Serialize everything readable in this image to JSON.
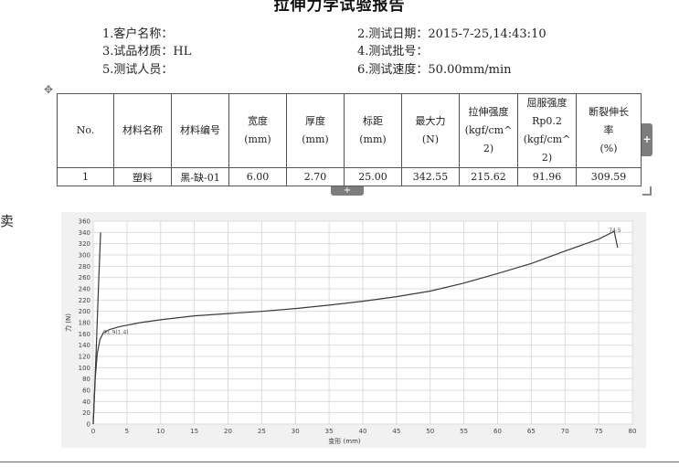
{
  "report": {
    "title": "拉伸力学试验报告"
  },
  "info": {
    "customer_label": "1.客户名称：",
    "customer_value": "",
    "material_label": "3.试品材质：",
    "material_value": "HL",
    "tester_label": "5.测试人员：",
    "tester_value": "",
    "date_label": "2.测试日期：",
    "date_value": "2015-7-25,14:43:10",
    "batch_label": "4.测试批号：",
    "batch_value": "",
    "speed_label": "6.测试速度：",
    "speed_value": "50.00mm/min"
  },
  "table": {
    "headers": [
      [
        "No."
      ],
      [
        "材料名称"
      ],
      [
        "材料编号"
      ],
      [
        "宽度",
        "(mm)"
      ],
      [
        "厚度",
        "(mm)"
      ],
      [
        "标距",
        "(mm)"
      ],
      [
        "最大力",
        "(N)"
      ],
      [
        "拉伸强度",
        "(kgf/cm^",
        "2)"
      ],
      [
        "屈服强度",
        "Rp0.2",
        "(kgf/cm^",
        "2)"
      ],
      [
        "断裂伸长",
        "率",
        "(%)"
      ]
    ],
    "row": [
      "1",
      "塑料",
      "黑-缺-01",
      "6.00",
      "2.70",
      "25.00",
      "342.55",
      "215.62",
      "91.96",
      "309.59"
    ]
  },
  "controls": {
    "add_symbol": "+",
    "move_symbol": "✥"
  },
  "left_note": "卖",
  "chart_data": {
    "type": "line",
    "title": "",
    "xlabel": "变形 (mm)",
    "ylabel": "力 (N)",
    "xlim": [
      0,
      80
    ],
    "ylim": [
      0,
      360
    ],
    "xticks": [
      0,
      5,
      10,
      15,
      20,
      25,
      30,
      35,
      40,
      45,
      50,
      55,
      60,
      65,
      70,
      75,
      80
    ],
    "yticks": [
      0,
      20,
      40,
      60,
      80,
      100,
      120,
      140,
      160,
      180,
      200,
      220,
      240,
      260,
      280,
      300,
      320,
      340,
      360
    ],
    "grid": true,
    "series": [
      {
        "name": "",
        "x": [
          0,
          0.3,
          0.6,
          1.0,
          1.5,
          2.5,
          4,
          7,
          10,
          15,
          20,
          25,
          30,
          35,
          40,
          45,
          50,
          55,
          60,
          65,
          70,
          75,
          77.3,
          77.8
        ],
        "y": [
          0,
          80,
          125,
          150,
          162,
          168,
          173,
          180,
          185,
          192,
          196,
          200,
          205,
          211,
          218,
          226,
          236,
          250,
          267,
          285,
          307,
          328,
          342,
          313
        ]
      },
      {
        "name": "",
        "x": [
          0,
          0.4,
          0.8,
          1.1
        ],
        "y": [
          0,
          120,
          250,
          340
        ]
      }
    ],
    "annotations": [
      {
        "text": "91.9(1.4)",
        "x": 1.5,
        "y": 163
      },
      {
        "text": "74.5",
        "x": 76.5,
        "y": 344
      }
    ]
  }
}
